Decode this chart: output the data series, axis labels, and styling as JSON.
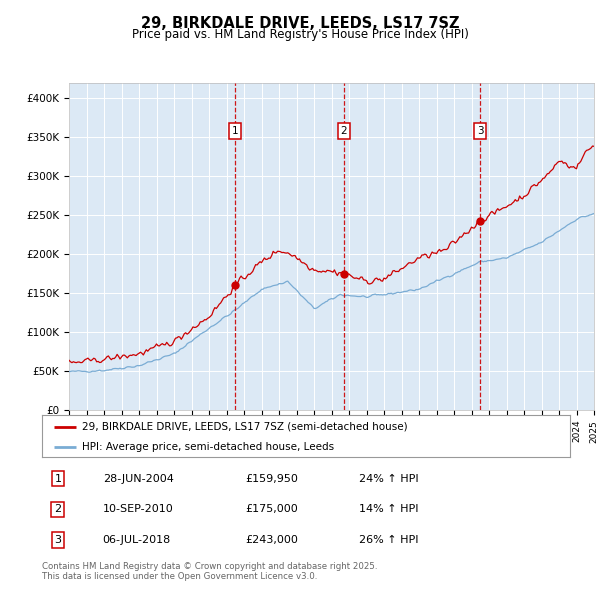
{
  "title": "29, BIRKDALE DRIVE, LEEDS, LS17 7SZ",
  "subtitle": "Price paid vs. HM Land Registry's House Price Index (HPI)",
  "red_label": "29, BIRKDALE DRIVE, LEEDS, LS17 7SZ (semi-detached house)",
  "blue_label": "HPI: Average price, semi-detached house, Leeds",
  "footnote": "Contains HM Land Registry data © Crown copyright and database right 2025.\nThis data is licensed under the Open Government Licence v3.0.",
  "yticks": [
    0,
    50000,
    100000,
    150000,
    200000,
    250000,
    300000,
    350000,
    400000
  ],
  "ytick_labels": [
    "£0",
    "£50K",
    "£100K",
    "£150K",
    "£200K",
    "£250K",
    "£300K",
    "£350K",
    "£400K"
  ],
  "transactions": [
    {
      "num": 1,
      "date": "28-JUN-2004",
      "price": 159950,
      "hpi_pct": "24% ↑ HPI",
      "year": 2004.5
    },
    {
      "num": 2,
      "date": "10-SEP-2010",
      "price": 175000,
      "hpi_pct": "14% ↑ HPI",
      "year": 2010.7
    },
    {
      "num": 3,
      "date": "06-JUL-2018",
      "price": 243000,
      "hpi_pct": "26% ↑ HPI",
      "year": 2018.5
    }
  ],
  "background_color": "#dce9f5",
  "red_color": "#cc0000",
  "blue_color": "#7aacd4",
  "grid_color": "#ffffff",
  "x_start_year": 1995,
  "x_end_year": 2025
}
